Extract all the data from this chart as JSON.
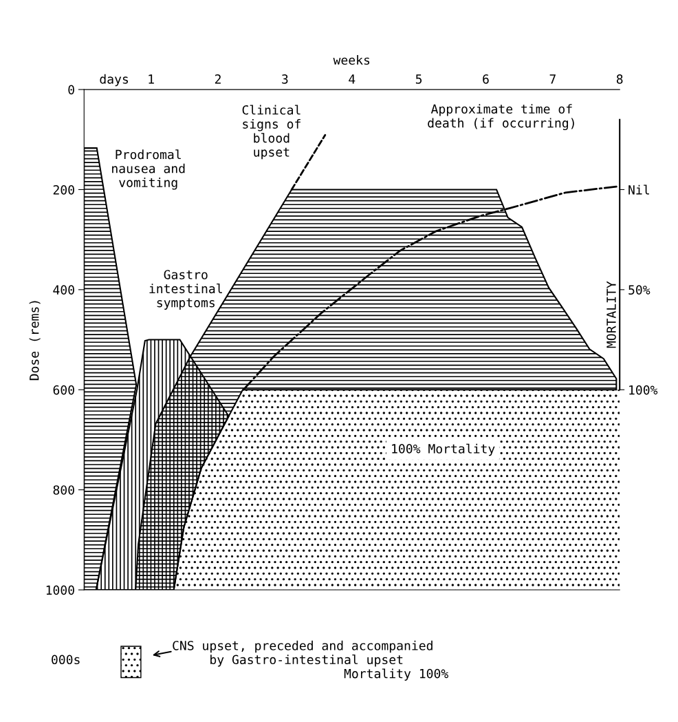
{
  "chart_data": {
    "type": "area",
    "xlabel": "weeks",
    "ylabel": "Dose (rems)",
    "y2label": "MORTALITY",
    "xlim": [
      0,
      8
    ],
    "xticks": [
      {
        "value": 0.45,
        "label": "days"
      },
      1,
      2,
      3,
      4,
      5,
      6,
      7,
      8
    ],
    "ylim": [
      1000,
      0
    ],
    "yticks": [
      0,
      200,
      400,
      600,
      800,
      1000
    ],
    "y2lim": [
      200,
      -50
    ],
    "y2ticks": [
      {
        "value": 0,
        "label": "Nil"
      },
      {
        "value": 50,
        "label": "50%"
      },
      {
        "value": 100,
        "label": "100%"
      }
    ],
    "grid": false,
    "legend": "bottom",
    "series": [
      {
        "color": "#000000",
        "x": [
          0,
          0.19,
          0.78,
          0.18,
          0
        ],
        "values": [
          117,
          117,
          590,
          1000,
          1000
        ]
      },
      {
        "color": "#000000",
        "x": [
          0.18,
          0.79,
          0.91,
          0.97,
          1.43,
          2.16,
          1.75,
          1.49,
          1.34,
          0.18
        ],
        "values": [
          1000,
          600,
          502,
          500,
          500,
          653,
          757,
          875,
          1000,
          1000
        ]
      },
      {
        "color": "#000000",
        "x": [
          0.77,
          0.81,
          1.07,
          1.58,
          3.1,
          6.16,
          6.33,
          6.54,
          6.74,
          6.94,
          7.14,
          7.35,
          7.55,
          7.76,
          7.95,
          7.95,
          2.37,
          2.16,
          1.75,
          1.49,
          1.34,
          0.77
        ],
        "values": [
          1000,
          909,
          668,
          535,
          200,
          200,
          256,
          275,
          337,
          396,
          435,
          477,
          519,
          538,
          578,
          600,
          600,
          653,
          757,
          875,
          1000,
          1000
        ]
      },
      {
        "name": "CNS upset, preceded and accompanied\n     by Gastro-intestinal upset\n                       Mortality 100%",
        "color": "#000000",
        "x": [
          1.34,
          1.49,
          1.75,
          2.16,
          2.37,
          8,
          8,
          1.34
        ],
        "values": [
          1000,
          875,
          757,
          653,
          600,
          600,
          1000,
          1000
        ]
      },
      {
        "type": "line",
        "color": "#000000",
        "line_style": "dashed",
        "x": [
          3.1,
          3.6
        ],
        "values": [
          200,
          91
        ]
      },
      {
        "type": "line",
        "color": "#000000",
        "line_style": "dashdot",
        "x": [
          2.38,
          2.83,
          3.55,
          4.25,
          4.72,
          5.26,
          5.91,
          6.36,
          7.19,
          7.95
        ],
        "values": [
          600,
          534,
          446,
          371,
          322,
          283,
          253,
          237,
          206,
          194
        ]
      }
    ],
    "annotations": [
      "Prodromal\nnausea and\nvomiting",
      "Gastro\nintestinal\nsymptoms",
      "Clinical\nsigns of\nblood\nupset",
      "Approximate time of\ndeath (if occurring)",
      "100% Mortality",
      "000s"
    ]
  }
}
